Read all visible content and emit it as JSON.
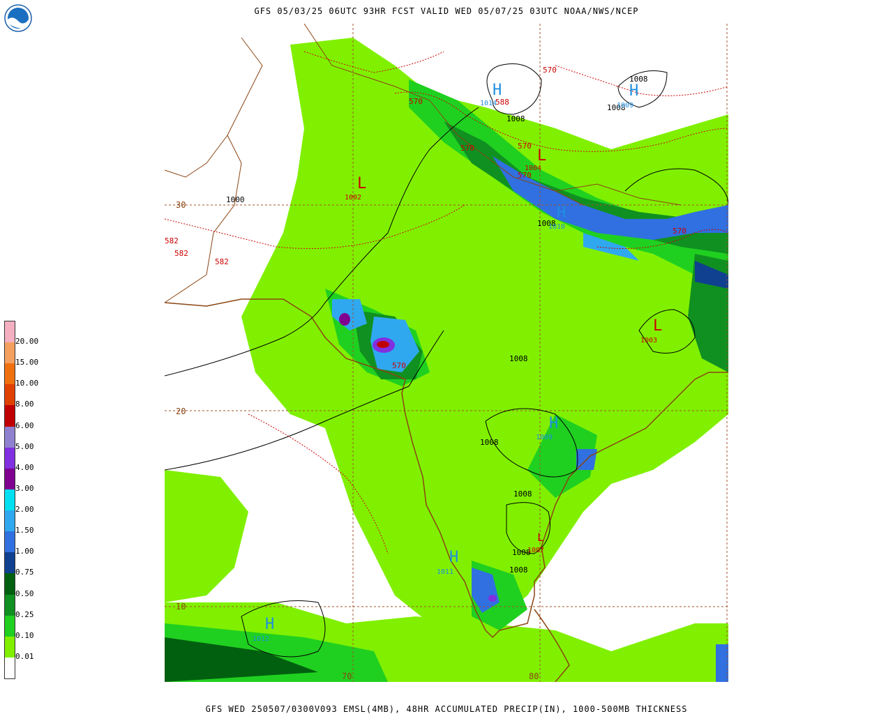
{
  "header": {
    "title": "GFS 05/03/25 06UTC 93HR FCST VALID WED 05/07/25 03UTC NOAA/NWS/NCEP",
    "footer": "GFS WED 250507/0300V093 EMSL(4MB), 48HR ACCUMULATED PRECIP(IN), 1000-500MB THICKNESS",
    "logo_text": "NOAA"
  },
  "legend": {
    "labels": [
      "20.00",
      "15.00",
      "10.00",
      "8.00",
      "6.00",
      "5.00",
      "4.00",
      "3.00",
      "2.00",
      "1.50",
      "1.00",
      "0.75",
      "0.50",
      "0.25",
      "0.10",
      "0.01"
    ],
    "colors": [
      "#f4b0c0",
      "#f4a060",
      "#f07010",
      "#e04000",
      "#c00000",
      "#9080d0",
      "#8030e0",
      "#800090",
      "#00e0f0",
      "#30a8f0",
      "#3070e0",
      "#104090",
      "#006010",
      "#109020",
      "#20d020",
      "#80f000",
      "#ffffff"
    ]
  },
  "map": {
    "lat_labels": [
      "30",
      "20",
      "10"
    ],
    "lon_labels": [
      "70",
      "80"
    ],
    "highs": [
      {
        "symbol": "H",
        "value": "1014"
      },
      {
        "symbol": "H",
        "value": "1009"
      },
      {
        "symbol": "H",
        "value": "1010"
      },
      {
        "symbol": "H",
        "value": "1009"
      },
      {
        "symbol": "H",
        "value": "1011"
      },
      {
        "symbol": "H",
        "value": "1012"
      }
    ],
    "lows": [
      {
        "symbol": "L",
        "value": "1002"
      },
      {
        "symbol": "L",
        "value": "1004"
      },
      {
        "symbol": "L",
        "value": "1003"
      },
      {
        "symbol": "L",
        "value": "1007"
      }
    ],
    "isobar_labels": [
      "1000",
      "1008",
      "1008",
      "1008",
      "1008",
      "1008",
      "1008",
      "1008",
      "1008",
      "1008"
    ],
    "thickness_labels": [
      "570",
      "570",
      "570",
      "570",
      "570",
      "570",
      "570",
      "582",
      "582",
      "582",
      "588"
    ]
  },
  "colors": {
    "thickness": "#cc0000",
    "high": "#1e8fe0",
    "low": "#cc0000",
    "border": "#8b4513",
    "isobar": "#000000"
  }
}
